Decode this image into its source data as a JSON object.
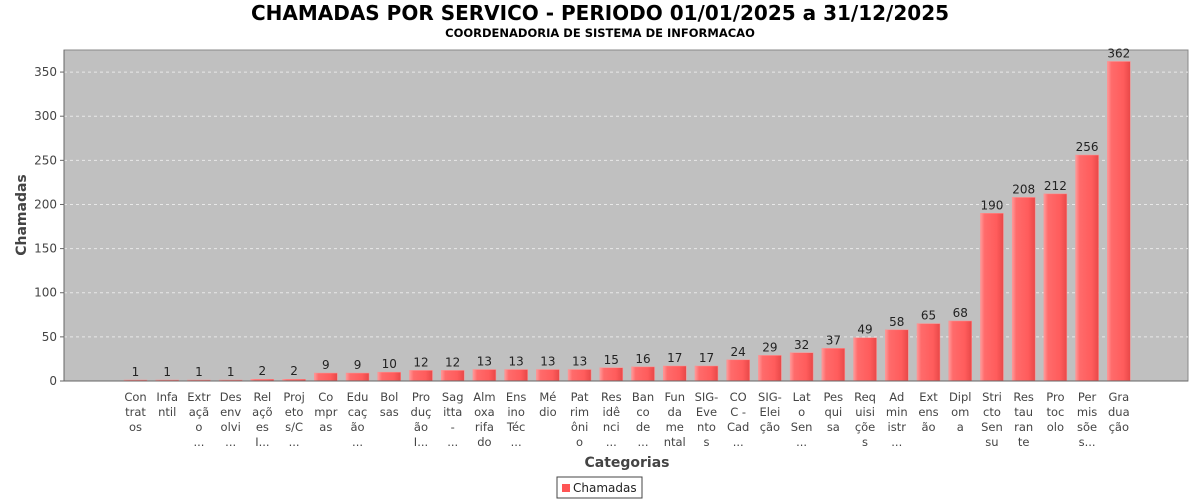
{
  "chart_data": {
    "type": "bar",
    "title": "CHAMADAS POR SERVICO - PERIODO 01/01/2025 a 31/12/2025",
    "subtitle": "COORDENADORIA DE SISTEMA DE INFORMACAO",
    "xlabel": "Categorias",
    "ylabel": "Chamadas",
    "ylim": [
      0,
      375
    ],
    "yticks": [
      0,
      50,
      100,
      150,
      200,
      250,
      300,
      350
    ],
    "grid": true,
    "legend": {
      "position": "bottom-center",
      "entries": [
        "Chamadas"
      ]
    },
    "series_color": "#ff6666",
    "categories": [
      [
        "Con",
        "trat",
        "os"
      ],
      [
        "Infa",
        "ntil"
      ],
      [
        "Extr",
        "açã",
        "o",
        "..."
      ],
      [
        "Des",
        "env",
        "olvi",
        "..."
      ],
      [
        "Rel",
        "açõ",
        "es",
        "I..."
      ],
      [
        "Proj",
        "eto",
        "s/C",
        "..."
      ],
      [
        "Co",
        "mpr",
        "as"
      ],
      [
        "Edu",
        "caç",
        "ão",
        "..."
      ],
      [
        "Bol",
        "sas"
      ],
      [
        "Pro",
        "duç",
        "ão",
        "I..."
      ],
      [
        "Sag",
        "itta",
        "-",
        "..."
      ],
      [
        "Alm",
        "oxa",
        "rifa",
        "do"
      ],
      [
        "Ens",
        "ino",
        "Téc",
        "..."
      ],
      [
        "Mé",
        "dio"
      ],
      [
        "Pat",
        "rim",
        "ôni",
        "o"
      ],
      [
        "Res",
        "idê",
        "nci",
        "..."
      ],
      [
        "Ban",
        "co",
        "de",
        "..."
      ],
      [
        "Fun",
        "da",
        "me",
        "ntal"
      ],
      [
        "SIG-",
        "Eve",
        "nto",
        "s"
      ],
      [
        "CO",
        "C -",
        "Cad",
        "..."
      ],
      [
        "SIG-",
        "Elei",
        "ção"
      ],
      [
        "Lat",
        "o",
        "Sen",
        "..."
      ],
      [
        "Pes",
        "qui",
        "sa"
      ],
      [
        "Req",
        "uisi",
        "çõe",
        "s"
      ],
      [
        "Ad",
        "min",
        "istr",
        "..."
      ],
      [
        "Ext",
        "ens",
        "ão"
      ],
      [
        "Dipl",
        "om",
        "a"
      ],
      [
        "Stri",
        "cto",
        "Sen",
        "su"
      ],
      [
        "Res",
        "tau",
        "ran",
        "te"
      ],
      [
        "Pro",
        "toc",
        "olo"
      ],
      [
        "Per",
        "mis",
        "sõe",
        "s..."
      ],
      [
        "Gra",
        "dua",
        "ção"
      ]
    ],
    "series": [
      {
        "name": "Chamadas",
        "values": [
          1,
          1,
          1,
          1,
          2,
          2,
          9,
          9,
          10,
          12,
          12,
          13,
          13,
          13,
          13,
          15,
          16,
          17,
          17,
          24,
          29,
          32,
          37,
          49,
          58,
          65,
          68,
          190,
          208,
          212,
          256,
          362
        ]
      }
    ]
  }
}
